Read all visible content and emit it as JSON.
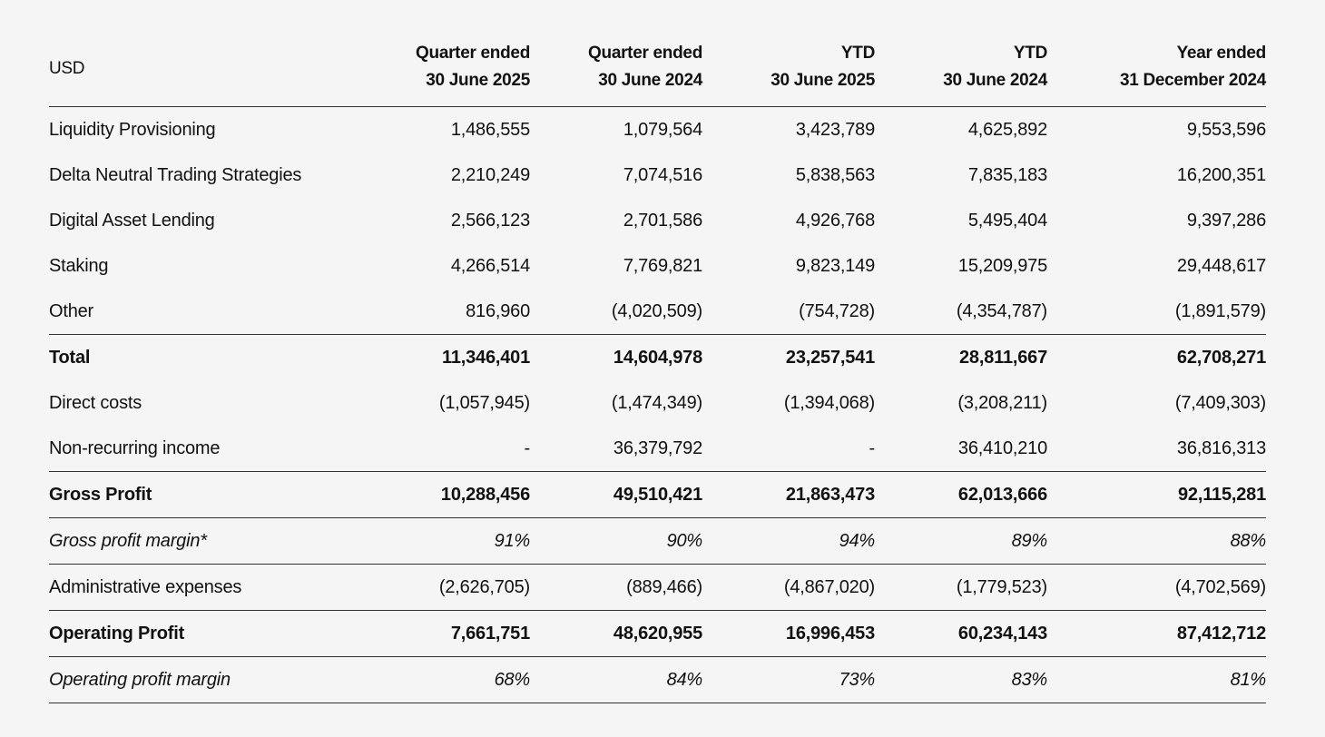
{
  "header": {
    "label": "USD",
    "columns": [
      {
        "line1": "Quarter ended",
        "line2": "30 June 2025"
      },
      {
        "line1": "Quarter ended",
        "line2": "30 June 2024"
      },
      {
        "line1": "YTD",
        "line2": "30 June 2025"
      },
      {
        "line1": "YTD",
        "line2": "30 June 2024"
      },
      {
        "line1": "Year ended",
        "line2": "31 December 2024"
      }
    ]
  },
  "rows": [
    {
      "label": "Liquidity Provisioning",
      "values": [
        "1,486,555",
        "1,079,564",
        "3,423,789",
        "4,625,892",
        "9,553,596"
      ],
      "style": ""
    },
    {
      "label": "Delta Neutral Trading Strategies",
      "values": [
        "2,210,249",
        "7,074,516",
        "5,838,563",
        "7,835,183",
        "16,200,351"
      ],
      "style": ""
    },
    {
      "label": "Digital Asset Lending",
      "values": [
        "2,566,123",
        "2,701,586",
        "4,926,768",
        "5,495,404",
        "9,397,286"
      ],
      "style": ""
    },
    {
      "label": "Staking",
      "values": [
        "4,266,514",
        "7,769,821",
        "9,823,149",
        "15,209,975",
        "29,448,617"
      ],
      "style": ""
    },
    {
      "label": "Other",
      "values": [
        "816,960",
        "(4,020,509)",
        "(754,728)",
        "(4,354,787)",
        "(1,891,579)"
      ],
      "style": "rule"
    },
    {
      "label": "Total",
      "values": [
        "11,346,401",
        "14,604,978",
        "23,257,541",
        "28,811,667",
        "62,708,271"
      ],
      "style": "bold"
    },
    {
      "label": "Direct costs",
      "values": [
        "(1,057,945)",
        "(1,474,349)",
        "(1,394,068)",
        "(3,208,211)",
        "(7,409,303)"
      ],
      "style": ""
    },
    {
      "label": "Non-recurring income",
      "values": [
        "-",
        "36,379,792",
        "-",
        "36,410,210",
        "36,816,313"
      ],
      "style": "rule"
    },
    {
      "label": "Gross Profit",
      "values": [
        "10,288,456",
        "49,510,421",
        "21,863,473",
        "62,013,666",
        "92,115,281"
      ],
      "style": "bold rule"
    },
    {
      "label": "Gross profit margin*",
      "values": [
        "91%",
        "90%",
        "94%",
        "89%",
        "88%"
      ],
      "style": "ital rule"
    },
    {
      "label": "Administrative expenses",
      "values": [
        "(2,626,705)",
        "(889,466)",
        "(4,867,020)",
        "(1,779,523)",
        "(4,702,569)"
      ],
      "style": "rule"
    },
    {
      "label": "Operating Profit",
      "values": [
        "7,661,751",
        "48,620,955",
        "16,996,453",
        "60,234,143",
        "87,412,712"
      ],
      "style": "bold rule"
    },
    {
      "label": "Operating profit margin",
      "values": [
        "68%",
        "84%",
        "73%",
        "83%",
        "81%"
      ],
      "style": "ital rule"
    }
  ]
}
